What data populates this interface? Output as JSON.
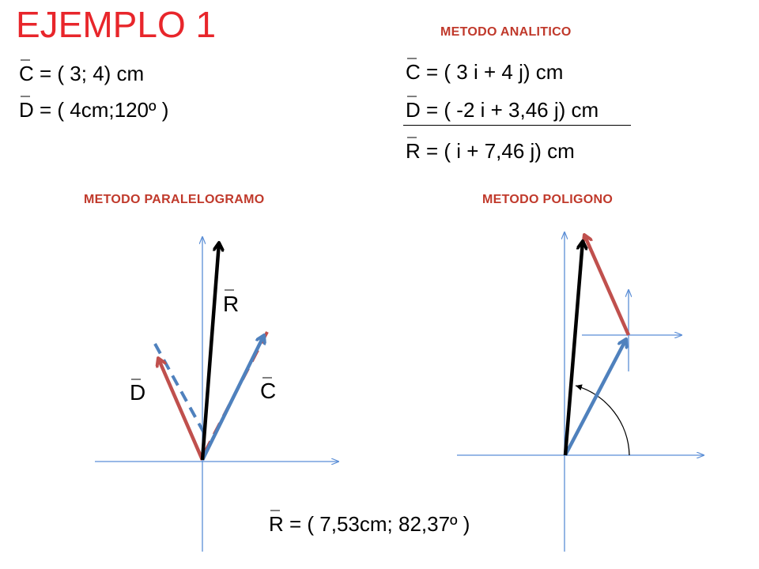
{
  "title": "EJEMPLO 1",
  "headings": {
    "analytic": "METODO ANALITICO",
    "parallelogram": "METODO PARALELOGRAMO",
    "polygon": "METODO POLIGONO"
  },
  "given": {
    "c": "C = ( 3;  4)   cm",
    "d": "D = ( 4cm;120º  )"
  },
  "analytic": {
    "c": "C = (  3 i  +   4 j)   cm",
    "d": "D = ( -2  i + 3,46 j)   cm",
    "r": "R = (     i + 7,46 j)   cm"
  },
  "result": "R = ( 7,53cm;  82,37º  )",
  "vector_labels": {
    "r": "R",
    "d": "D",
    "c": "C"
  },
  "colors": {
    "title": "#e8262b",
    "heading": "#c0392b",
    "axis": "#5b8ed6",
    "vector_c": "#4f81bd",
    "vector_d": "#c0504d",
    "vector_r": "#000000"
  }
}
